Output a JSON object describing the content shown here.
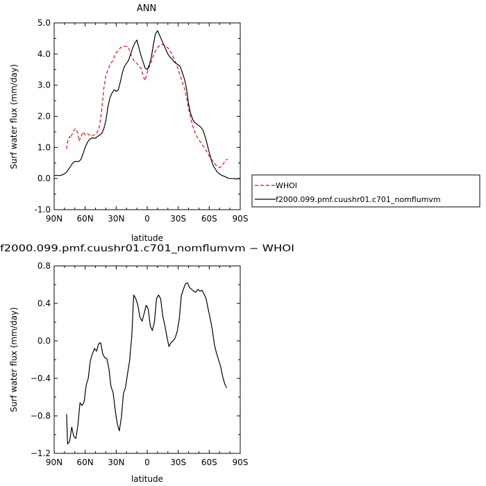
{
  "chart_data": [
    {
      "type": "line",
      "title": "ANN",
      "xlabel": "latitude",
      "ylabel": "Surf water flux (mm/day)",
      "xlim": [
        90,
        -90
      ],
      "ylim": [
        -1.0,
        5.0
      ],
      "xticks": [
        90,
        60,
        30,
        0,
        -30,
        -60,
        -90
      ],
      "xtick_labels": [
        "90N",
        "60N",
        "30N",
        "0",
        "30S",
        "60S",
        "90S"
      ],
      "yticks": [
        -1.0,
        0.0,
        1.0,
        2.0,
        3.0,
        4.0,
        5.0
      ],
      "ytick_labels": [
        "-1.0",
        "0.0",
        "1.0",
        "2.0",
        "3.0",
        "4.0",
        "5.0"
      ],
      "grid": false,
      "legend_position": "right",
      "series": [
        {
          "name": "WHOI",
          "color": "#dd1111",
          "dash": "dashed",
          "x": [
            78,
            77,
            75,
            74,
            73,
            71,
            69,
            67,
            66,
            64,
            62,
            60,
            58,
            56,
            54,
            52,
            50,
            48,
            46,
            44,
            42,
            40,
            38,
            36,
            34,
            32,
            30,
            28,
            26,
            24,
            22,
            20,
            18,
            16,
            14,
            12,
            10,
            8,
            6,
            4,
            2,
            0,
            -2,
            -4,
            -6,
            -8,
            -10,
            -12,
            -14,
            -16,
            -18,
            -20,
            -22,
            -24,
            -26,
            -28,
            -30,
            -32,
            -34,
            -36,
            -38,
            -40,
            -42,
            -44,
            -46,
            -48,
            -50,
            -52,
            -54,
            -56,
            -58,
            -60,
            -62,
            -64,
            -66,
            -68,
            -70,
            -72,
            -74,
            -76,
            -78
          ],
          "y": [
            0.95,
            1.2,
            1.35,
            1.3,
            1.4,
            1.55,
            1.6,
            1.45,
            1.2,
            1.35,
            1.5,
            1.4,
            1.45,
            1.4,
            1.35,
            1.4,
            1.42,
            1.5,
            1.7,
            2.2,
            2.9,
            3.3,
            3.5,
            3.65,
            3.75,
            3.9,
            4.05,
            4.1,
            4.2,
            4.25,
            4.25,
            4.25,
            4.2,
            4.0,
            3.85,
            3.75,
            3.7,
            3.6,
            3.55,
            3.3,
            3.15,
            3.4,
            3.6,
            3.75,
            3.95,
            4.1,
            4.2,
            4.28,
            4.3,
            4.3,
            4.25,
            4.2,
            4.1,
            4.0,
            3.85,
            3.7,
            3.5,
            3.3,
            3.1,
            2.9,
            2.6,
            2.25,
            1.95,
            1.7,
            1.5,
            1.35,
            1.25,
            1.15,
            1.05,
            0.95,
            0.85,
            0.72,
            0.62,
            0.55,
            0.45,
            0.38,
            0.35,
            0.4,
            0.5,
            0.6,
            0.62
          ]
        },
        {
          "name": "f2000.099.pmf.cuushr01.c701_nomflumvm",
          "color": "#000000",
          "dash": "solid",
          "x": [
            90,
            88,
            86,
            84,
            82,
            80,
            78,
            76,
            74,
            72,
            70,
            68,
            66,
            64,
            62,
            60,
            58,
            56,
            54,
            52,
            50,
            48,
            46,
            44,
            42,
            40,
            38,
            36,
            34,
            32,
            30,
            28,
            26,
            24,
            22,
            20,
            18,
            16,
            14,
            12,
            10,
            8,
            6,
            4,
            2,
            0,
            -2,
            -4,
            -6,
            -8,
            -10,
            -12,
            -14,
            -16,
            -18,
            -20,
            -22,
            -24,
            -26,
            -28,
            -30,
            -32,
            -34,
            -36,
            -38,
            -40,
            -42,
            -44,
            -46,
            -48,
            -50,
            -52,
            -54,
            -56,
            -58,
            -60,
            -62,
            -64,
            -66,
            -68,
            -70,
            -72,
            -74,
            -76,
            -78,
            -80,
            -82,
            -84,
            -86,
            -88,
            -90
          ],
          "y": [
            0.1,
            0.1,
            0.1,
            0.1,
            0.12,
            0.15,
            0.2,
            0.3,
            0.4,
            0.5,
            0.55,
            0.55,
            0.55,
            0.62,
            0.8,
            1.0,
            1.15,
            1.25,
            1.3,
            1.3,
            1.3,
            1.35,
            1.4,
            1.45,
            1.6,
            1.85,
            2.3,
            2.6,
            2.75,
            2.85,
            2.8,
            2.85,
            3.1,
            3.4,
            3.6,
            3.7,
            3.8,
            4.0,
            4.2,
            4.35,
            4.45,
            4.2,
            3.95,
            3.75,
            3.55,
            3.5,
            3.65,
            3.9,
            4.3,
            4.65,
            4.75,
            4.6,
            4.45,
            4.3,
            4.15,
            4.0,
            3.9,
            3.85,
            3.75,
            3.7,
            3.65,
            3.6,
            3.4,
            3.2,
            2.9,
            2.4,
            2.1,
            1.9,
            1.8,
            1.75,
            1.7,
            1.65,
            1.55,
            1.35,
            1.1,
            0.85,
            0.6,
            0.4,
            0.3,
            0.2,
            0.15,
            0.1,
            0.08,
            0.05,
            0.02,
            0.0,
            0.0,
            0.0,
            -0.02,
            0.0,
            -0.02
          ]
        }
      ]
    },
    {
      "type": "line",
      "title": "f2000.099.pmf.cuushr01.c701_nomflumvm − WHOI",
      "xlabel": "latitude",
      "ylabel": "Surf water flux (mm/day)",
      "xlim": [
        90,
        -90
      ],
      "ylim": [
        -1.2,
        0.8
      ],
      "xticks": [
        90,
        60,
        30,
        0,
        -30,
        -60,
        -90
      ],
      "xtick_labels": [
        "90N",
        "60N",
        "30N",
        "0",
        "30S",
        "60S",
        "90S"
      ],
      "yticks": [
        -1.2,
        -0.8,
        -0.4,
        0.0,
        0.4,
        0.8
      ],
      "ytick_labels": [
        "−1.2",
        "−0.8",
        "−0.4",
        "0.0",
        "0.4",
        "0.8"
      ],
      "grid": false,
      "series": [
        {
          "color": "#000000",
          "dash": "solid",
          "x": [
            78,
            77,
            75,
            73,
            71,
            69,
            67,
            65,
            63,
            61,
            59,
            57,
            55,
            53,
            51,
            49,
            47,
            45,
            43,
            41,
            39,
            37,
            35,
            33,
            31,
            29,
            27,
            25,
            23,
            21,
            19,
            17,
            15,
            13,
            11,
            9,
            7,
            5,
            3,
            1,
            -1,
            -3,
            -5,
            -7,
            -9,
            -11,
            -13,
            -15,
            -17,
            -19,
            -21,
            -23,
            -25,
            -27,
            -29,
            -31,
            -33,
            -35,
            -37,
            -39,
            -41,
            -43,
            -45,
            -47,
            -49,
            -51,
            -53,
            -55,
            -57,
            -59,
            -61,
            -63,
            -65,
            -67,
            -69,
            -71,
            -73,
            -75,
            -77
          ],
          "y": [
            -0.78,
            -1.1,
            -1.07,
            -0.92,
            -1.02,
            -1.04,
            -0.9,
            -0.66,
            -0.69,
            -0.65,
            -0.47,
            -0.4,
            -0.21,
            -0.14,
            -0.08,
            -0.11,
            -0.03,
            -0.02,
            -0.14,
            -0.18,
            -0.19,
            -0.3,
            -0.49,
            -0.55,
            -0.73,
            -0.88,
            -0.96,
            -0.82,
            -0.56,
            -0.5,
            -0.35,
            -0.21,
            0.04,
            0.49,
            0.45,
            0.38,
            0.25,
            0.21,
            0.29,
            0.38,
            0.34,
            0.16,
            0.11,
            0.2,
            0.45,
            0.49,
            0.45,
            0.27,
            0.17,
            0.05,
            -0.06,
            -0.02,
            0.0,
            0.03,
            0.1,
            0.23,
            0.48,
            0.55,
            0.61,
            0.62,
            0.57,
            0.55,
            0.53,
            0.52,
            0.55,
            0.53,
            0.54,
            0.5,
            0.45,
            0.34,
            0.24,
            0.12,
            -0.04,
            -0.13,
            -0.2,
            -0.27,
            -0.38,
            -0.46,
            -0.5
          ]
        }
      ]
    }
  ],
  "legend": {
    "items": [
      {
        "label": "WHOI",
        "color": "#dd1111",
        "dash": "dashed"
      },
      {
        "label": "f2000.099.pmf.cuushr01.c701_nomflumvm",
        "color": "#000000",
        "dash": "solid"
      }
    ]
  }
}
